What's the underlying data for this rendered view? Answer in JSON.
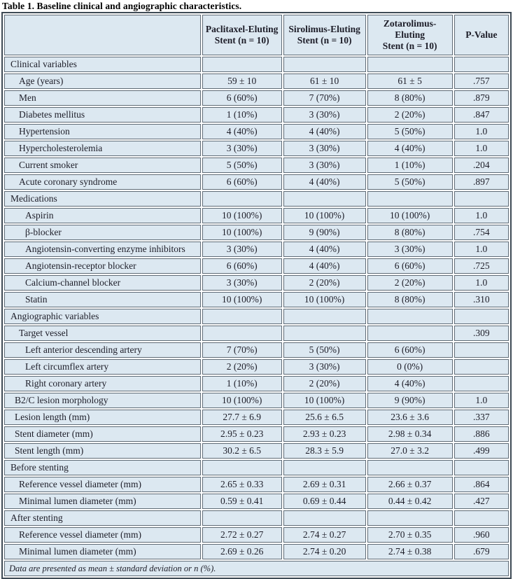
{
  "title": "Table 1. Baseline clinical and angiographic characteristics.",
  "columns": {
    "corner": "",
    "groups": [
      {
        "line1": "Paclitaxel-Eluting",
        "line2": "Stent (n = 10)"
      },
      {
        "line1": "Sirolimus-Eluting",
        "line2": "Stent (n = 10)"
      },
      {
        "line1": "Zotarolimus-Eluting",
        "line2": "Stent (n = 10)"
      },
      {
        "line1": "P-Value",
        "line2": ""
      }
    ]
  },
  "rows": [
    {
      "label": "Clinical variables",
      "indent": 0,
      "values": [
        "",
        "",
        ""
      ],
      "p": ""
    },
    {
      "label": "Age (years)",
      "indent": 2,
      "values": [
        "59 ± 10",
        "61 ± 10",
        "61 ± 5"
      ],
      "p": ".757"
    },
    {
      "label": "Men",
      "indent": 2,
      "values": [
        "6 (60%)",
        "7 (70%)",
        "8 (80%)"
      ],
      "p": ".879"
    },
    {
      "label": "Diabetes mellitus",
      "indent": 2,
      "values": [
        "1 (10%)",
        "3 (30%)",
        "2 (20%)"
      ],
      "p": ".847"
    },
    {
      "label": "Hypertension",
      "indent": 2,
      "values": [
        "4 (40%)",
        "4 (40%)",
        "5 (50%)"
      ],
      "p": "1.0"
    },
    {
      "label": "Hypercholesterolemia",
      "indent": 2,
      "values": [
        "3 (30%)",
        "3 (30%)",
        "4 (40%)"
      ],
      "p": "1.0"
    },
    {
      "label": "Current smoker",
      "indent": 2,
      "values": [
        "5 (50%)",
        "3 (30%)",
        "1 (10%)"
      ],
      "p": ".204"
    },
    {
      "label": "Acute coronary syndrome",
      "indent": 2,
      "values": [
        "6 (60%)",
        "4 (40%)",
        "5 (50%)"
      ],
      "p": ".897"
    },
    {
      "label": "Medications",
      "indent": 0,
      "values": [
        "",
        "",
        ""
      ],
      "p": ""
    },
    {
      "label": "Aspirin",
      "indent": 3,
      "values": [
        "10 (100%)",
        "10 (100%)",
        "10 (100%)"
      ],
      "p": "1.0"
    },
    {
      "label": "β-blocker",
      "indent": 3,
      "values": [
        "10 (100%)",
        "9 (90%)",
        "8 (80%)"
      ],
      "p": ".754"
    },
    {
      "label": "Angiotensin-converting enzyme inhibitors",
      "indent": 3,
      "values": [
        "3 (30%)",
        "4 (40%)",
        "3 (30%)"
      ],
      "p": "1.0"
    },
    {
      "label": "Angiotensin-receptor blocker",
      "indent": 3,
      "values": [
        "6 (60%)",
        "4 (40%)",
        "6 (60%)"
      ],
      "p": ".725"
    },
    {
      "label": "Calcium-channel blocker",
      "indent": 3,
      "values": [
        "3 (30%)",
        "2 (20%)",
        "2 (20%)"
      ],
      "p": "1.0"
    },
    {
      "label": "Statin",
      "indent": 3,
      "values": [
        "10 (100%)",
        "10 (100%)",
        "8 (80%)"
      ],
      "p": ".310"
    },
    {
      "label": "Angiographic variables",
      "indent": 0,
      "values": [
        "",
        "",
        ""
      ],
      "p": ""
    },
    {
      "label": "Target vessel",
      "indent": 2,
      "values": [
        "",
        "",
        ""
      ],
      "p": ".309"
    },
    {
      "label": "Left anterior descending artery",
      "indent": 3,
      "values": [
        "7 (70%)",
        "5 (50%)",
        "6 (60%)"
      ],
      "p": ""
    },
    {
      "label": "Left circumflex artery",
      "indent": 3,
      "values": [
        "2 (20%)",
        "3 (30%)",
        "0 (0%)"
      ],
      "p": ""
    },
    {
      "label": "Right coronary artery",
      "indent": 3,
      "values": [
        "1 (10%)",
        "2 (20%)",
        "4 (40%)"
      ],
      "p": ""
    },
    {
      "label": "B2/C lesion morphology",
      "indent": 1,
      "values": [
        "10 (100%)",
        "10 (100%)",
        "9 (90%)"
      ],
      "p": "1.0"
    },
    {
      "label": "Lesion length (mm)",
      "indent": 1,
      "values": [
        "27.7 ± 6.9",
        "25.6 ± 6.5",
        "23.6 ± 3.6"
      ],
      "p": ".337"
    },
    {
      "label": "Stent diameter (mm)",
      "indent": 1,
      "values": [
        "2.95 ± 0.23",
        "2.93 ± 0.23",
        "2.98 ± 0.34"
      ],
      "p": ".886"
    },
    {
      "label": "Stent length (mm)",
      "indent": 1,
      "values": [
        "30.2 ± 6.5",
        "28.3 ± 5.9",
        "27.0 ± 3.2"
      ],
      "p": ".499"
    },
    {
      "label": "Before stenting",
      "indent": 0,
      "values": [
        "",
        "",
        ""
      ],
      "p": ""
    },
    {
      "label": "Reference vessel diameter (mm)",
      "indent": 2,
      "values": [
        "2.65 ± 0.33",
        "2.69 ± 0.31",
        "2.66 ± 0.37"
      ],
      "p": ".864"
    },
    {
      "label": "Minimal lumen diameter (mm)",
      "indent": 2,
      "values": [
        "0.59 ± 0.41",
        "0.69 ± 0.44",
        "0.44 ± 0.42"
      ],
      "p": ".427"
    },
    {
      "label": "After stenting",
      "indent": 0,
      "values": [
        "",
        "",
        ""
      ],
      "p": ""
    },
    {
      "label": "Reference vessel diameter (mm)",
      "indent": 2,
      "values": [
        "2.72 ± 0.27",
        "2.74 ± 0.27",
        "2.70 ± 0.35"
      ],
      "p": ".960"
    },
    {
      "label": "Minimal lumen diameter (mm)",
      "indent": 2,
      "values": [
        "2.69 ± 0.26",
        "2.74 ± 0.20",
        "2.74 ± 0.38"
      ],
      "p": ".679"
    }
  ],
  "footnote": "Data are presented as mean ± standard deviation or n (%).",
  "colors": {
    "cell_bg": "#dce8f1",
    "inner_border": "#5f6b76",
    "outer_border": "#3e4a55",
    "text": "#1d1d28"
  }
}
